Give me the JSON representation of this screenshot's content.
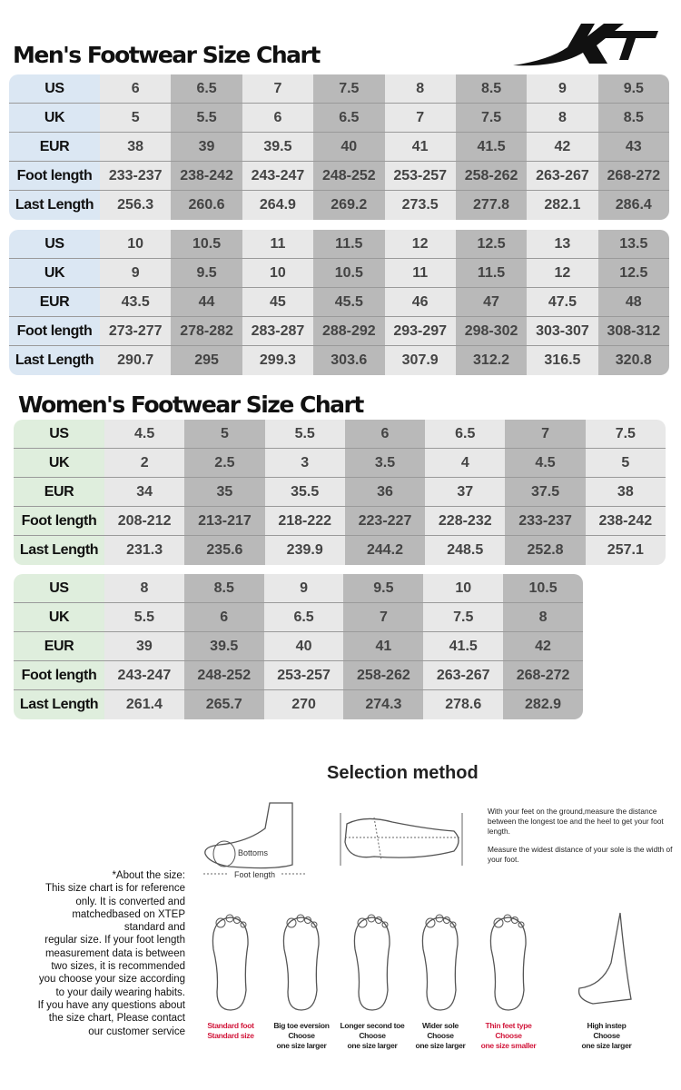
{
  "logo": {
    "text": "XTEP"
  },
  "men": {
    "title": "Men's Footwear Size Chart",
    "row_labels": [
      "US",
      "UK",
      "EUR",
      "Foot length",
      "Last Length"
    ],
    "tables": [
      {
        "columns": [
          [
            "6",
            "5",
            "38",
            "233-237",
            "256.3"
          ],
          [
            "6.5",
            "5.5",
            "39",
            "238-242",
            "260.6"
          ],
          [
            "7",
            "6",
            "39.5",
            "243-247",
            "264.9"
          ],
          [
            "7.5",
            "6.5",
            "40",
            "248-252",
            "269.2"
          ],
          [
            "8",
            "7",
            "41",
            "253-257",
            "273.5"
          ],
          [
            "8.5",
            "7.5",
            "41.5",
            "258-262",
            "277.8"
          ],
          [
            "9",
            "8",
            "42",
            "263-267",
            "282.1"
          ],
          [
            "9.5",
            "8.5",
            "43",
            "268-272",
            "286.4"
          ]
        ]
      },
      {
        "columns": [
          [
            "10",
            "9",
            "43.5",
            "273-277",
            "290.7"
          ],
          [
            "10.5",
            "9.5",
            "44",
            "278-282",
            "295"
          ],
          [
            "11",
            "10",
            "45",
            "283-287",
            "299.3"
          ],
          [
            "11.5",
            "10.5",
            "45.5",
            "288-292",
            "303.6"
          ],
          [
            "12",
            "11",
            "46",
            "293-297",
            "307.9"
          ],
          [
            "12.5",
            "11.5",
            "47",
            "298-302",
            "312.2"
          ],
          [
            "13",
            "12",
            "47.5",
            "303-307",
            "316.5"
          ],
          [
            "13.5",
            "12.5",
            "48",
            "308-312",
            "320.8"
          ]
        ]
      }
    ]
  },
  "women": {
    "title": "Women's Footwear Size Chart",
    "row_labels": [
      "US",
      "UK",
      "EUR",
      "Foot length",
      "Last Length"
    ],
    "tables": [
      {
        "columns": [
          [
            "4.5",
            "2",
            "34",
            "208-212",
            "231.3"
          ],
          [
            "5",
            "2.5",
            "35",
            "213-217",
            "235.6"
          ],
          [
            "5.5",
            "3",
            "35.5",
            "218-222",
            "239.9"
          ],
          [
            "6",
            "3.5",
            "36",
            "223-227",
            "244.2"
          ],
          [
            "6.5",
            "4",
            "37",
            "228-232",
            "248.5"
          ],
          [
            "7",
            "4.5",
            "37.5",
            "233-237",
            "252.8"
          ],
          [
            "7.5",
            "5",
            "38",
            "238-242",
            "257.1"
          ]
        ]
      },
      {
        "columns": [
          [
            "8",
            "5.5",
            "39",
            "243-247",
            "261.4"
          ],
          [
            "8.5",
            "6",
            "39.5",
            "248-252",
            "265.7"
          ],
          [
            "9",
            "6.5",
            "40",
            "253-257",
            "270"
          ],
          [
            "9.5",
            "7",
            "41",
            "258-262",
            "274.3"
          ],
          [
            "10",
            "7.5",
            "41.5",
            "263-267",
            "278.6"
          ],
          [
            "10.5",
            "8",
            "42",
            "268-272",
            "282.9"
          ]
        ]
      }
    ]
  },
  "selection": {
    "title": "Selection method",
    "bottoms_label": "Bottoms",
    "foot_length_label": "Foot length",
    "desc1": "With your feet on the ground,measure the distance between the longest toe and the heel to get your foot length.",
    "desc2": "Measure the widest distance of your sole is the width of your foot.",
    "note_lines": [
      "*About the size:",
      "This size chart is for reference",
      "only. It is converted and",
      "matchedbased on XTEP",
      "standard and",
      "regular size. If your foot length",
      "measurement data is between",
      "two sizes, it is recommended",
      "you choose your size according",
      "to your daily wearing habits.",
      "If you have any questions about",
      "the size chart, Please contact",
      "our customer service"
    ],
    "captions": [
      {
        "lines": [
          "Standard foot",
          "Standard size"
        ],
        "red": true
      },
      {
        "lines": [
          "Big toe eversion",
          "Choose",
          "one size larger"
        ],
        "red": false
      },
      {
        "lines": [
          "Longer second toe",
          "Choose",
          "one size larger"
        ],
        "red": false
      },
      {
        "lines": [
          "Wider sole",
          "Choose",
          "one size larger"
        ],
        "red": false
      },
      {
        "lines": [
          "Thin feet type",
          "Choose",
          "one size smaller"
        ],
        "red": true
      },
      {
        "lines": [
          "High instep",
          "Choose",
          "one size larger"
        ],
        "red": false
      }
    ]
  }
}
